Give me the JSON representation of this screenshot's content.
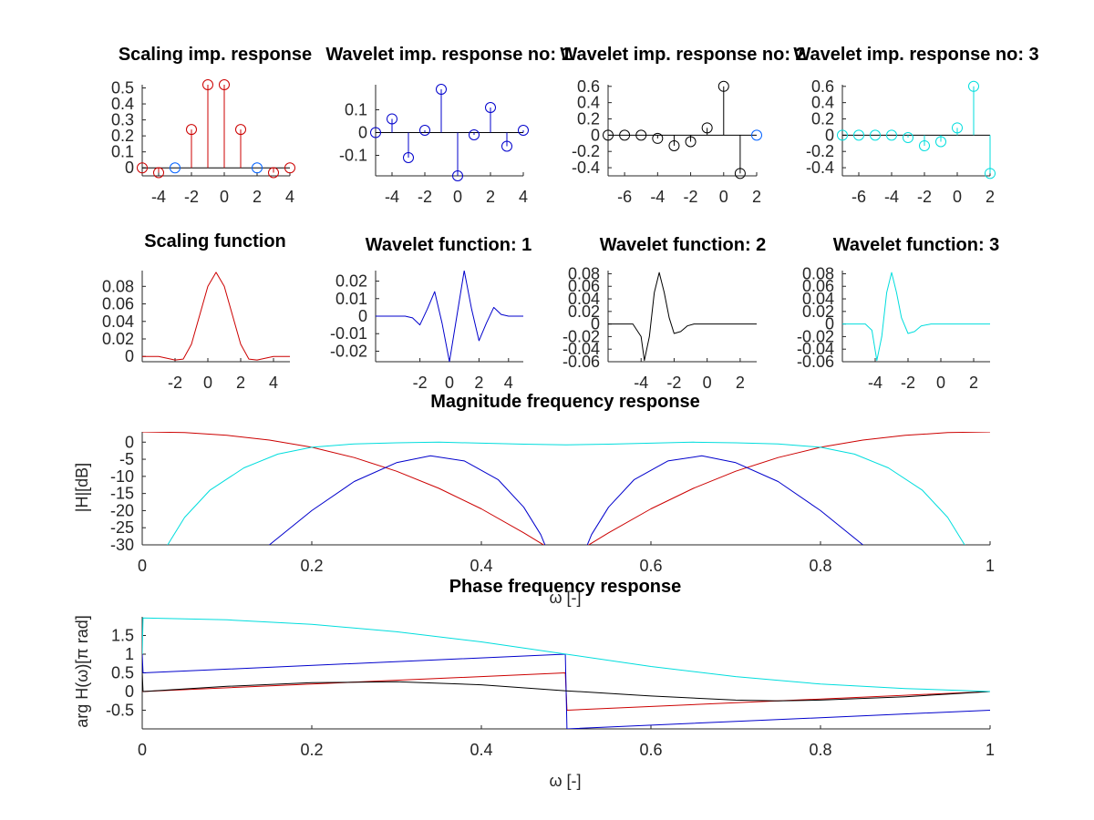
{
  "colors": {
    "scaling": "#cc0000",
    "wavelet1": "#0000cc",
    "wavelet2": "#000000",
    "wavelet3": "#00dddd"
  },
  "chart_data": [
    {
      "type": "stem",
      "title": "Scaling imp. response",
      "color": "#cc0000",
      "highlight_color": "#0060ff",
      "x": [
        -5,
        -4,
        -3,
        -2,
        -1,
        0,
        1,
        2,
        3,
        4
      ],
      "values": [
        0.0,
        -0.03,
        0.0,
        0.24,
        0.52,
        0.52,
        0.24,
        0.0,
        -0.03,
        0.0
      ],
      "highlight_x": [
        -3,
        2
      ],
      "xlim": [
        -5,
        4
      ],
      "ylim": [
        -0.05,
        0.52
      ],
      "xticks": [
        -4,
        -2,
        0,
        2,
        4
      ],
      "yticks": [
        0,
        0.1,
        0.2,
        0.3,
        0.4,
        0.5
      ]
    },
    {
      "type": "stem",
      "title": "Wavelet imp. response no: 1",
      "color": "#0000cc",
      "x": [
        -5,
        -4,
        -3,
        -2,
        -1,
        0,
        1,
        2,
        3,
        4
      ],
      "values": [
        0.0,
        0.06,
        -0.11,
        0.01,
        0.19,
        -0.19,
        -0.01,
        0.11,
        -0.06,
        0.01
      ],
      "xlim": [
        -5,
        4
      ],
      "ylim": [
        -0.19,
        0.21
      ],
      "xticks": [
        -4,
        -2,
        0,
        2,
        4
      ],
      "yticks": [
        -0.1,
        0,
        0.1
      ]
    },
    {
      "type": "stem",
      "title": "Wavelet imp. response no: 2",
      "color": "#000000",
      "highlight_color": "#0060ff",
      "x": [
        -7,
        -6,
        -5,
        -4,
        -3,
        -2,
        -1,
        0,
        1,
        2
      ],
      "values": [
        0.0,
        0.0,
        0.0,
        -0.04,
        -0.13,
        -0.08,
        0.09,
        0.6,
        -0.47,
        0.0
      ],
      "highlight_x": [
        2
      ],
      "xlim": [
        -7,
        2
      ],
      "ylim": [
        -0.5,
        0.62
      ],
      "xticks": [
        -6,
        -4,
        -2,
        0,
        2
      ],
      "yticks": [
        -0.4,
        -0.2,
        0,
        0.2,
        0.4,
        0.6
      ]
    },
    {
      "type": "stem",
      "title": "Wavelet imp. response no: 3",
      "color": "#00dddd",
      "x": [
        -7,
        -6,
        -5,
        -4,
        -3,
        -2,
        -1,
        0,
        1,
        2
      ],
      "values": [
        0.0,
        0.0,
        0.0,
        0.0,
        -0.03,
        -0.13,
        -0.08,
        0.09,
        0.6,
        -0.47
      ],
      "xlim": [
        -7,
        2
      ],
      "ylim": [
        -0.5,
        0.62
      ],
      "xticks": [
        -6,
        -4,
        -2,
        0,
        2
      ],
      "yticks": [
        -0.4,
        -0.2,
        0,
        0.2,
        0.4,
        0.6
      ]
    },
    {
      "type": "line",
      "title": "Scaling function",
      "color": "#cc0000",
      "x": [
        -4,
        -3,
        -2,
        -1.5,
        -1,
        -0.5,
        0,
        0.5,
        1,
        1.5,
        2,
        2.5,
        3,
        4,
        5
      ],
      "values": [
        0.0,
        0.0,
        -0.004,
        -0.003,
        0.014,
        0.047,
        0.08,
        0.096,
        0.08,
        0.047,
        0.014,
        -0.003,
        -0.004,
        0.0,
        0.0
      ],
      "xlim": [
        -4,
        5
      ],
      "ylim": [
        -0.006,
        0.098
      ],
      "xticks": [
        -2,
        0,
        2,
        4
      ],
      "yticks": [
        0,
        0.02,
        0.04,
        0.06,
        0.08
      ]
    },
    {
      "type": "line",
      "title": "Wavelet function: 1",
      "color": "#0000cc",
      "x": [
        -5,
        -3,
        -2.5,
        -2,
        -1.5,
        -1,
        -0.5,
        0,
        0.5,
        1,
        1.5,
        2,
        2.5,
        3,
        3.5,
        4,
        5
      ],
      "values": [
        0.0,
        0.0,
        -0.001,
        -0.005,
        0.004,
        0.014,
        -0.004,
        -0.026,
        0.0,
        0.026,
        0.004,
        -0.014,
        -0.004,
        0.005,
        0.001,
        0.0,
        0.0
      ],
      "xlim": [
        -5,
        5
      ],
      "ylim": [
        -0.026,
        0.026
      ],
      "xticks": [
        -2,
        0,
        2,
        4
      ],
      "yticks": [
        -0.02,
        -0.01,
        0,
        0.01,
        0.02
      ]
    },
    {
      "type": "line",
      "title": "Wavelet function: 2",
      "color": "#000000",
      "x": [
        -6,
        -4.5,
        -4,
        -3.8,
        -3.5,
        -3.2,
        -2.9,
        -2.6,
        -2.3,
        -2.0,
        -1.6,
        -1.2,
        -0.8,
        -0.4,
        3
      ],
      "values": [
        0.0,
        0.0,
        -0.02,
        -0.058,
        -0.02,
        0.05,
        0.082,
        0.05,
        0.01,
        -0.015,
        -0.012,
        -0.003,
        0.0,
        0.0,
        0.0
      ],
      "xlim": [
        -6,
        3
      ],
      "ylim": [
        -0.06,
        0.085
      ],
      "xticks": [
        -4,
        -2,
        0,
        2
      ],
      "yticks": [
        -0.06,
        -0.04,
        -0.02,
        0,
        0.02,
        0.04,
        0.06,
        0.08
      ]
    },
    {
      "type": "line",
      "title": "Wavelet function: 3",
      "color": "#00dddd",
      "x": [
        -6,
        -5.2,
        -4.6,
        -4.2,
        -3.9,
        -3.6,
        -3.3,
        -3.0,
        -2.7,
        -2.4,
        -2.0,
        -1.6,
        -1.2,
        -0.6,
        3
      ],
      "values": [
        0.0,
        0.0,
        0.0,
        -0.01,
        -0.058,
        -0.02,
        0.05,
        0.082,
        0.05,
        0.01,
        -0.015,
        -0.012,
        -0.003,
        0.0,
        0.0
      ],
      "xlim": [
        -6,
        3
      ],
      "ylim": [
        -0.06,
        0.085
      ],
      "xticks": [
        -4,
        -2,
        0,
        2
      ],
      "yticks": [
        -0.06,
        -0.04,
        -0.02,
        0,
        0.02,
        0.04,
        0.06,
        0.08
      ]
    },
    {
      "type": "line",
      "title": "Magnitude frequency response",
      "xlabel": "ω [-]",
      "ylabel": "|H|[dB]",
      "xlim": [
        0,
        1
      ],
      "ylim": [
        -30,
        3
      ],
      "xticks": [
        0,
        0.2,
        0.4,
        0.6,
        0.8,
        1
      ],
      "yticks": [
        -30,
        -25,
        -20,
        -15,
        -10,
        -5,
        0
      ],
      "series": [
        {
          "color": "#cc0000",
          "x": [
            0,
            0.05,
            0.1,
            0.15,
            0.2,
            0.25,
            0.3,
            0.35,
            0.4,
            0.45,
            0.48,
            0.5
          ],
          "values": [
            3.0,
            2.8,
            2.0,
            0.6,
            -1.5,
            -4.5,
            -8.5,
            -13.5,
            -19.5,
            -26.5,
            -31,
            -35
          ]
        },
        {
          "color": "#cc0000",
          "x": [
            0.5,
            0.52,
            0.55,
            0.6,
            0.65,
            0.7,
            0.75,
            0.8,
            0.85,
            0.9,
            0.95,
            1
          ],
          "values": [
            -35,
            -31,
            -26.5,
            -19.5,
            -13.5,
            -8.5,
            -4.5,
            -1.5,
            0.6,
            2.0,
            2.8,
            3.0
          ]
        },
        {
          "color": "#0000cc",
          "x": [
            0.13,
            0.15,
            0.2,
            0.25,
            0.3,
            0.34,
            0.38,
            0.42,
            0.45,
            0.47,
            0.48
          ],
          "values": [
            -33,
            -30,
            -20,
            -11.5,
            -6,
            -4,
            -5.5,
            -11,
            -19,
            -27,
            -33
          ]
        },
        {
          "color": "#0000cc",
          "x": [
            0.52,
            0.53,
            0.55,
            0.58,
            0.62,
            0.66,
            0.7,
            0.75,
            0.8,
            0.85,
            0.87
          ],
          "values": [
            -33,
            -27,
            -19,
            -11,
            -5.5,
            -4,
            -6,
            -11.5,
            -20,
            -30,
            -33
          ]
        },
        {
          "color": "#00dddd",
          "x": [
            0.025,
            0.03,
            0.05,
            0.08,
            0.12,
            0.16,
            0.2,
            0.25,
            0.3,
            0.35,
            0.4,
            0.45,
            0.5,
            0.55,
            0.6,
            0.65,
            0.7,
            0.75,
            0.8,
            0.84,
            0.88,
            0.92,
            0.95,
            0.97,
            0.975
          ],
          "values": [
            -33,
            -30,
            -22,
            -14,
            -7.5,
            -3.5,
            -1.5,
            -0.5,
            -0.2,
            0.0,
            -0.3,
            -0.6,
            -0.8,
            -0.6,
            -0.3,
            0.0,
            -0.2,
            -0.5,
            -1.5,
            -3.5,
            -7.5,
            -14,
            -22,
            -30,
            -33
          ]
        }
      ]
    },
    {
      "type": "line",
      "title": "Phase frequency response",
      "xlabel": "ω [-]",
      "ylabel": "arg H(ω)[π rad]",
      "xlim": [
        0,
        1
      ],
      "ylim": [
        -1,
        2
      ],
      "xticks": [
        0,
        0.2,
        0.4,
        0.6,
        0.8,
        1
      ],
      "yticks": [
        -0.5,
        0,
        0.5,
        1,
        1.5
      ],
      "series": [
        {
          "color": "#cc0000",
          "x": [
            0,
            0.499,
            0.501,
            1
          ],
          "values": [
            0,
            0.5,
            -0.5,
            0
          ]
        },
        {
          "color": "#0000cc",
          "x": [
            0,
            0.001,
            0.499,
            0.501,
            1
          ],
          "values": [
            1,
            0.5,
            1,
            -1,
            -0.5
          ]
        },
        {
          "color": "#000000",
          "x": [
            0,
            0.001,
            0.1,
            0.2,
            0.3,
            0.4,
            0.5,
            0.6,
            0.7,
            0.75,
            0.8,
            0.9,
            1
          ],
          "values": [
            0.5,
            0,
            0.14,
            0.24,
            0.26,
            0.18,
            0.02,
            -0.12,
            -0.23,
            -0.25,
            -0.23,
            -0.14,
            0
          ]
        },
        {
          "color": "#00dddd",
          "x": [
            0,
            0.001,
            0.1,
            0.2,
            0.3,
            0.4,
            0.5,
            0.6,
            0.7,
            0.8,
            0.9,
            1
          ],
          "values": [
            1,
            1.97,
            1.92,
            1.8,
            1.6,
            1.33,
            1.0,
            0.67,
            0.4,
            0.2,
            0.08,
            0
          ]
        }
      ]
    }
  ]
}
